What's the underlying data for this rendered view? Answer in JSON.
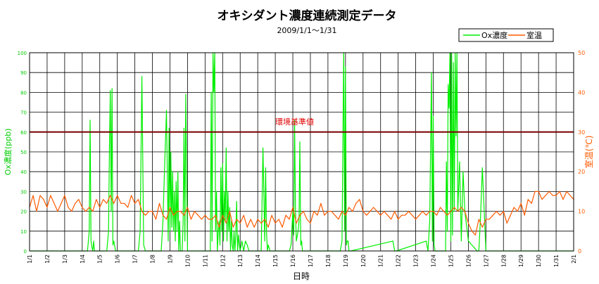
{
  "chart_data": {
    "type": "line",
    "title": "オキシダント濃度連続測定データ",
    "subtitle": "2009/1/1～1/31",
    "xlabel": "日時",
    "ylabel_left": "Ox濃度(ppb)",
    "ylabel_right": "室温(℃)",
    "ylim_left": [
      0,
      100
    ],
    "ylim_right": [
      0,
      50
    ],
    "xlim": [
      0,
      31
    ],
    "grid": true,
    "legend_position": "top-right",
    "x_tick_labels": [
      "1/1",
      "1/2",
      "1/3",
      "1/4",
      "1/5",
      "1/6",
      "1/7",
      "1/8",
      "1/9",
      "1/10",
      "1/11",
      "1/12",
      "1/13",
      "1/14",
      "1/15",
      "1/16",
      "1/17",
      "1/18",
      "1/19",
      "1/20",
      "1/21",
      "1/22",
      "1/23",
      "1/24",
      "1/25",
      "1/26",
      "1/27",
      "1/28",
      "1/29",
      "1/30",
      "1/31",
      "2/1"
    ],
    "y_ticks_left": [
      0,
      10,
      20,
      30,
      40,
      50,
      60,
      70,
      80,
      90,
      100
    ],
    "y_ticks_right": [
      0,
      10,
      20,
      30,
      40,
      50
    ],
    "reference_line": {
      "label": "環境基準値",
      "value": 60,
      "color": "#7a0000",
      "label_color": "#e00000"
    },
    "colors": {
      "ox": "#00ee00",
      "temp": "#ff5a00",
      "grid": "#000000"
    },
    "series": [
      {
        "name": "Ox濃度",
        "axis": "left",
        "x": [
          0,
          3.3,
          3.4,
          3.45,
          3.5,
          3.55,
          3.6,
          3.65,
          3.7,
          3.8,
          4.4,
          4.5,
          4.55,
          4.6,
          4.65,
          4.7,
          4.75,
          4.8,
          4.9,
          5.0,
          6.2,
          6.3,
          6.4,
          6.5,
          6.6,
          6.8,
          7.5,
          7.6,
          7.7,
          7.8,
          7.9,
          7.95,
          8.0,
          8.05,
          8.1,
          8.15,
          8.2,
          8.25,
          8.3,
          8.35,
          8.4,
          8.45,
          8.5,
          8.55,
          8.6,
          8.7,
          8.75,
          8.8,
          8.85,
          8.9,
          9.0,
          10.3,
          10.35,
          10.4,
          10.45,
          10.5,
          10.55,
          10.6,
          10.65,
          10.7,
          10.75,
          10.8,
          10.85,
          10.9,
          10.95,
          11.0,
          11.05,
          11.1,
          11.15,
          11.2,
          11.25,
          11.3,
          11.35,
          11.4,
          11.45,
          11.5,
          11.55,
          11.6,
          11.65,
          11.7,
          11.75,
          11.8,
          11.85,
          11.9,
          11.95,
          12.0,
          12.1,
          12.2,
          12.3,
          12.4,
          12.5,
          13.2,
          13.3,
          13.4,
          13.45,
          13.5,
          13.55,
          13.6,
          13.7,
          14.8,
          14.9,
          15.0,
          15.05,
          15.1,
          15.15,
          15.2,
          15.3,
          15.35,
          15.4,
          15.45,
          15.5,
          15.55,
          15.6,
          15.8,
          16.0,
          17.7,
          17.8,
          17.9,
          17.95,
          18.0,
          18.05,
          18.1,
          18.15,
          18.2,
          18.3,
          20.7,
          20.8,
          20.9,
          22.6,
          22.7,
          22.8,
          22.9,
          22.95,
          23.0,
          23.05,
          23.1,
          23.2,
          23.7,
          23.75,
          23.8,
          23.85,
          23.9,
          23.95,
          24.0,
          24.05,
          24.1,
          24.15,
          24.2,
          24.25,
          24.3,
          24.35,
          24.4,
          24.5,
          24.6,
          24.7,
          24.8,
          25.0,
          25.5,
          25.6,
          25.7,
          25.8,
          26.0,
          27.0,
          27.1,
          27.2,
          28.0,
          31.0
        ],
        "values": [
          0,
          0,
          10,
          66,
          5,
          2,
          0,
          5,
          0,
          0,
          0,
          10,
          52,
          81,
          20,
          82,
          3,
          5,
          0,
          0,
          0,
          10,
          88,
          3,
          0,
          0,
          0,
          15,
          44,
          71,
          5,
          62,
          10,
          50,
          12,
          40,
          10,
          30,
          5,
          35,
          10,
          40,
          0,
          15,
          0,
          0,
          15,
          62,
          5,
          79,
          0,
          0,
          80,
          5,
          100,
          80,
          100,
          10,
          30,
          0,
          10,
          15,
          3,
          42,
          10,
          44,
          5,
          30,
          15,
          52,
          5,
          30,
          10,
          22,
          0,
          15,
          3,
          0,
          10,
          0,
          8,
          25,
          0,
          8,
          3,
          0,
          5,
          0,
          5,
          3,
          0,
          0,
          52,
          5,
          42,
          10,
          0,
          3,
          0,
          0,
          3,
          20,
          8,
          66,
          20,
          5,
          10,
          15,
          55,
          3,
          5,
          0,
          0,
          0,
          0,
          0,
          5,
          100,
          10,
          93,
          3,
          5,
          5,
          0,
          0,
          5,
          0,
          0,
          5,
          0,
          15,
          90,
          5,
          68,
          3,
          0,
          0,
          0,
          45,
          10,
          84,
          72,
          100,
          5,
          100,
          8,
          95,
          20,
          100,
          58,
          100,
          20,
          45,
          5,
          40,
          20,
          5,
          0,
          0,
          18,
          42,
          0,
          0,
          0,
          0,
          0,
          0
        ],
        "note_x_unit": "days since 1/1"
      },
      {
        "name": "室温",
        "axis": "right",
        "x": [
          0,
          0.2,
          0.4,
          0.6,
          0.8,
          1.0,
          1.2,
          1.4,
          1.6,
          1.8,
          2.0,
          2.2,
          2.4,
          2.6,
          2.8,
          3.0,
          3.2,
          3.4,
          3.6,
          3.8,
          4.0,
          4.2,
          4.4,
          4.6,
          4.8,
          5.0,
          5.2,
          5.4,
          5.6,
          5.8,
          6.0,
          6.2,
          6.4,
          6.6,
          6.8,
          7.0,
          7.2,
          7.4,
          7.6,
          7.8,
          8.0,
          8.2,
          8.4,
          8.6,
          8.8,
          9.0,
          9.2,
          9.4,
          9.6,
          9.8,
          10.0,
          10.2,
          10.4,
          10.6,
          10.8,
          11.0,
          11.2,
          11.4,
          11.6,
          11.8,
          12.0,
          12.2,
          12.4,
          12.6,
          12.8,
          13.0,
          13.2,
          13.4,
          13.6,
          13.8,
          14.0,
          14.2,
          14.4,
          14.6,
          14.8,
          15.0,
          15.2,
          15.4,
          15.6,
          15.8,
          16.0,
          16.2,
          16.4,
          16.6,
          16.8,
          17.0,
          17.2,
          17.4,
          17.6,
          17.8,
          18.0,
          18.2,
          18.4,
          18.6,
          18.8,
          19.0,
          19.2,
          19.4,
          19.6,
          19.8,
          20.0,
          20.2,
          20.4,
          20.6,
          20.8,
          21.0,
          21.2,
          21.4,
          21.6,
          21.8,
          22.0,
          22.2,
          22.4,
          22.6,
          22.8,
          23.0,
          23.2,
          23.4,
          23.6,
          23.8,
          24.0,
          24.2,
          24.4,
          24.6,
          24.8,
          25.0,
          25.2,
          25.4,
          25.6,
          25.8,
          26.0,
          26.2,
          26.4,
          26.6,
          26.8,
          27.0,
          27.2,
          27.4,
          27.6,
          27.8,
          28.0,
          28.2,
          28.4,
          28.6,
          28.8,
          29.0,
          29.2,
          29.4,
          29.6,
          29.8,
          30.0,
          30.2,
          30.4,
          30.6,
          30.8,
          31.0
        ],
        "values": [
          11,
          14,
          10,
          14,
          13,
          11,
          14,
          12,
          10,
          12,
          14,
          11,
          10,
          12,
          13,
          11,
          10,
          11,
          10,
          13,
          11,
          13,
          12,
          14,
          12,
          14,
          12,
          12,
          11,
          14,
          12,
          13,
          10,
          9,
          10,
          10,
          8,
          12,
          9,
          8,
          11,
          9,
          10,
          10,
          9,
          11,
          8,
          10,
          9,
          8,
          9,
          8,
          8,
          9,
          6,
          9,
          7,
          10,
          6,
          8,
          7,
          9,
          6,
          8,
          6,
          8,
          7,
          8,
          6,
          9,
          7,
          8,
          6,
          9,
          8,
          11,
          7,
          9,
          10,
          8,
          7,
          10,
          9,
          12,
          9,
          10,
          10,
          9,
          8,
          10,
          9,
          11,
          10,
          12,
          13,
          10,
          9,
          10,
          11,
          10,
          9,
          10,
          9,
          8,
          10,
          8,
          9,
          9,
          10,
          9,
          8,
          9,
          10,
          9,
          10,
          10,
          9,
          11,
          10,
          9,
          10,
          11,
          10,
          11,
          10,
          7,
          5,
          4,
          8,
          6,
          8,
          8,
          9,
          10,
          9,
          10,
          7,
          9,
          11,
          10,
          12,
          9,
          13,
          12,
          15,
          15,
          13,
          14,
          15,
          14,
          14,
          15,
          13,
          15,
          14,
          13
        ]
      }
    ]
  },
  "legend": {
    "ox_label": "Ox濃度",
    "temp_label": "室温"
  }
}
